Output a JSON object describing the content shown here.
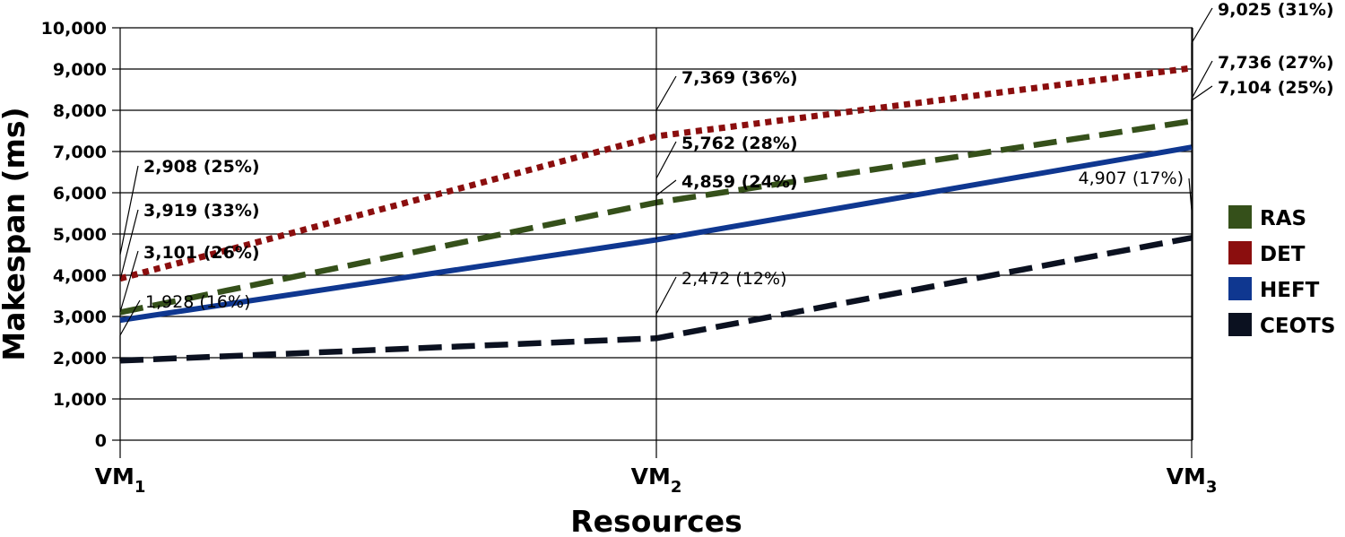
{
  "chart_data": {
    "type": "line",
    "title": "",
    "xlabel": "Resources",
    "ylabel": "Makespan (ms)",
    "ylim": [
      0,
      10000
    ],
    "y_ticks": [
      "0",
      "1,000",
      "2,000",
      "3,000",
      "4,000",
      "5,000",
      "6,000",
      "7,000",
      "8,000",
      "9,000",
      "10,000"
    ],
    "categories": [
      {
        "base": "VM",
        "sub": "1"
      },
      {
        "base": "VM",
        "sub": "2"
      },
      {
        "base": "VM",
        "sub": "3"
      }
    ],
    "grid": true,
    "legend_position": "right",
    "series": [
      {
        "name": "RAS",
        "color": "#35501a",
        "style": "dashed",
        "values": [
          3101,
          5762,
          7736
        ],
        "labels": [
          "3,101 (26%)",
          "5,762 (28%)",
          "7,736 (27%)"
        ],
        "label_weight": "bold"
      },
      {
        "name": "DET",
        "color": "#8b0e0e",
        "style": "dotted",
        "values": [
          3919,
          7369,
          9025
        ],
        "labels": [
          "3,919 (33%)",
          "7,369 (36%)",
          "9,025 (31%)"
        ],
        "label_weight": "bold"
      },
      {
        "name": "HEFT",
        "color": "#0f3790",
        "style": "solid",
        "values": [
          2908,
          4859,
          7104
        ],
        "labels": [
          "2,908 (25%)",
          "4,859 (24%)",
          "7,104 (25%)"
        ],
        "label_weight": "bold"
      },
      {
        "name": "CEOTS",
        "color": "#0b1120",
        "style": "dashed",
        "values": [
          1928,
          2472,
          4907
        ],
        "labels": [
          "1,928 (16%)",
          "2,472 (12%)",
          "4,907 (17%)"
        ],
        "label_weight": "normal"
      }
    ]
  }
}
